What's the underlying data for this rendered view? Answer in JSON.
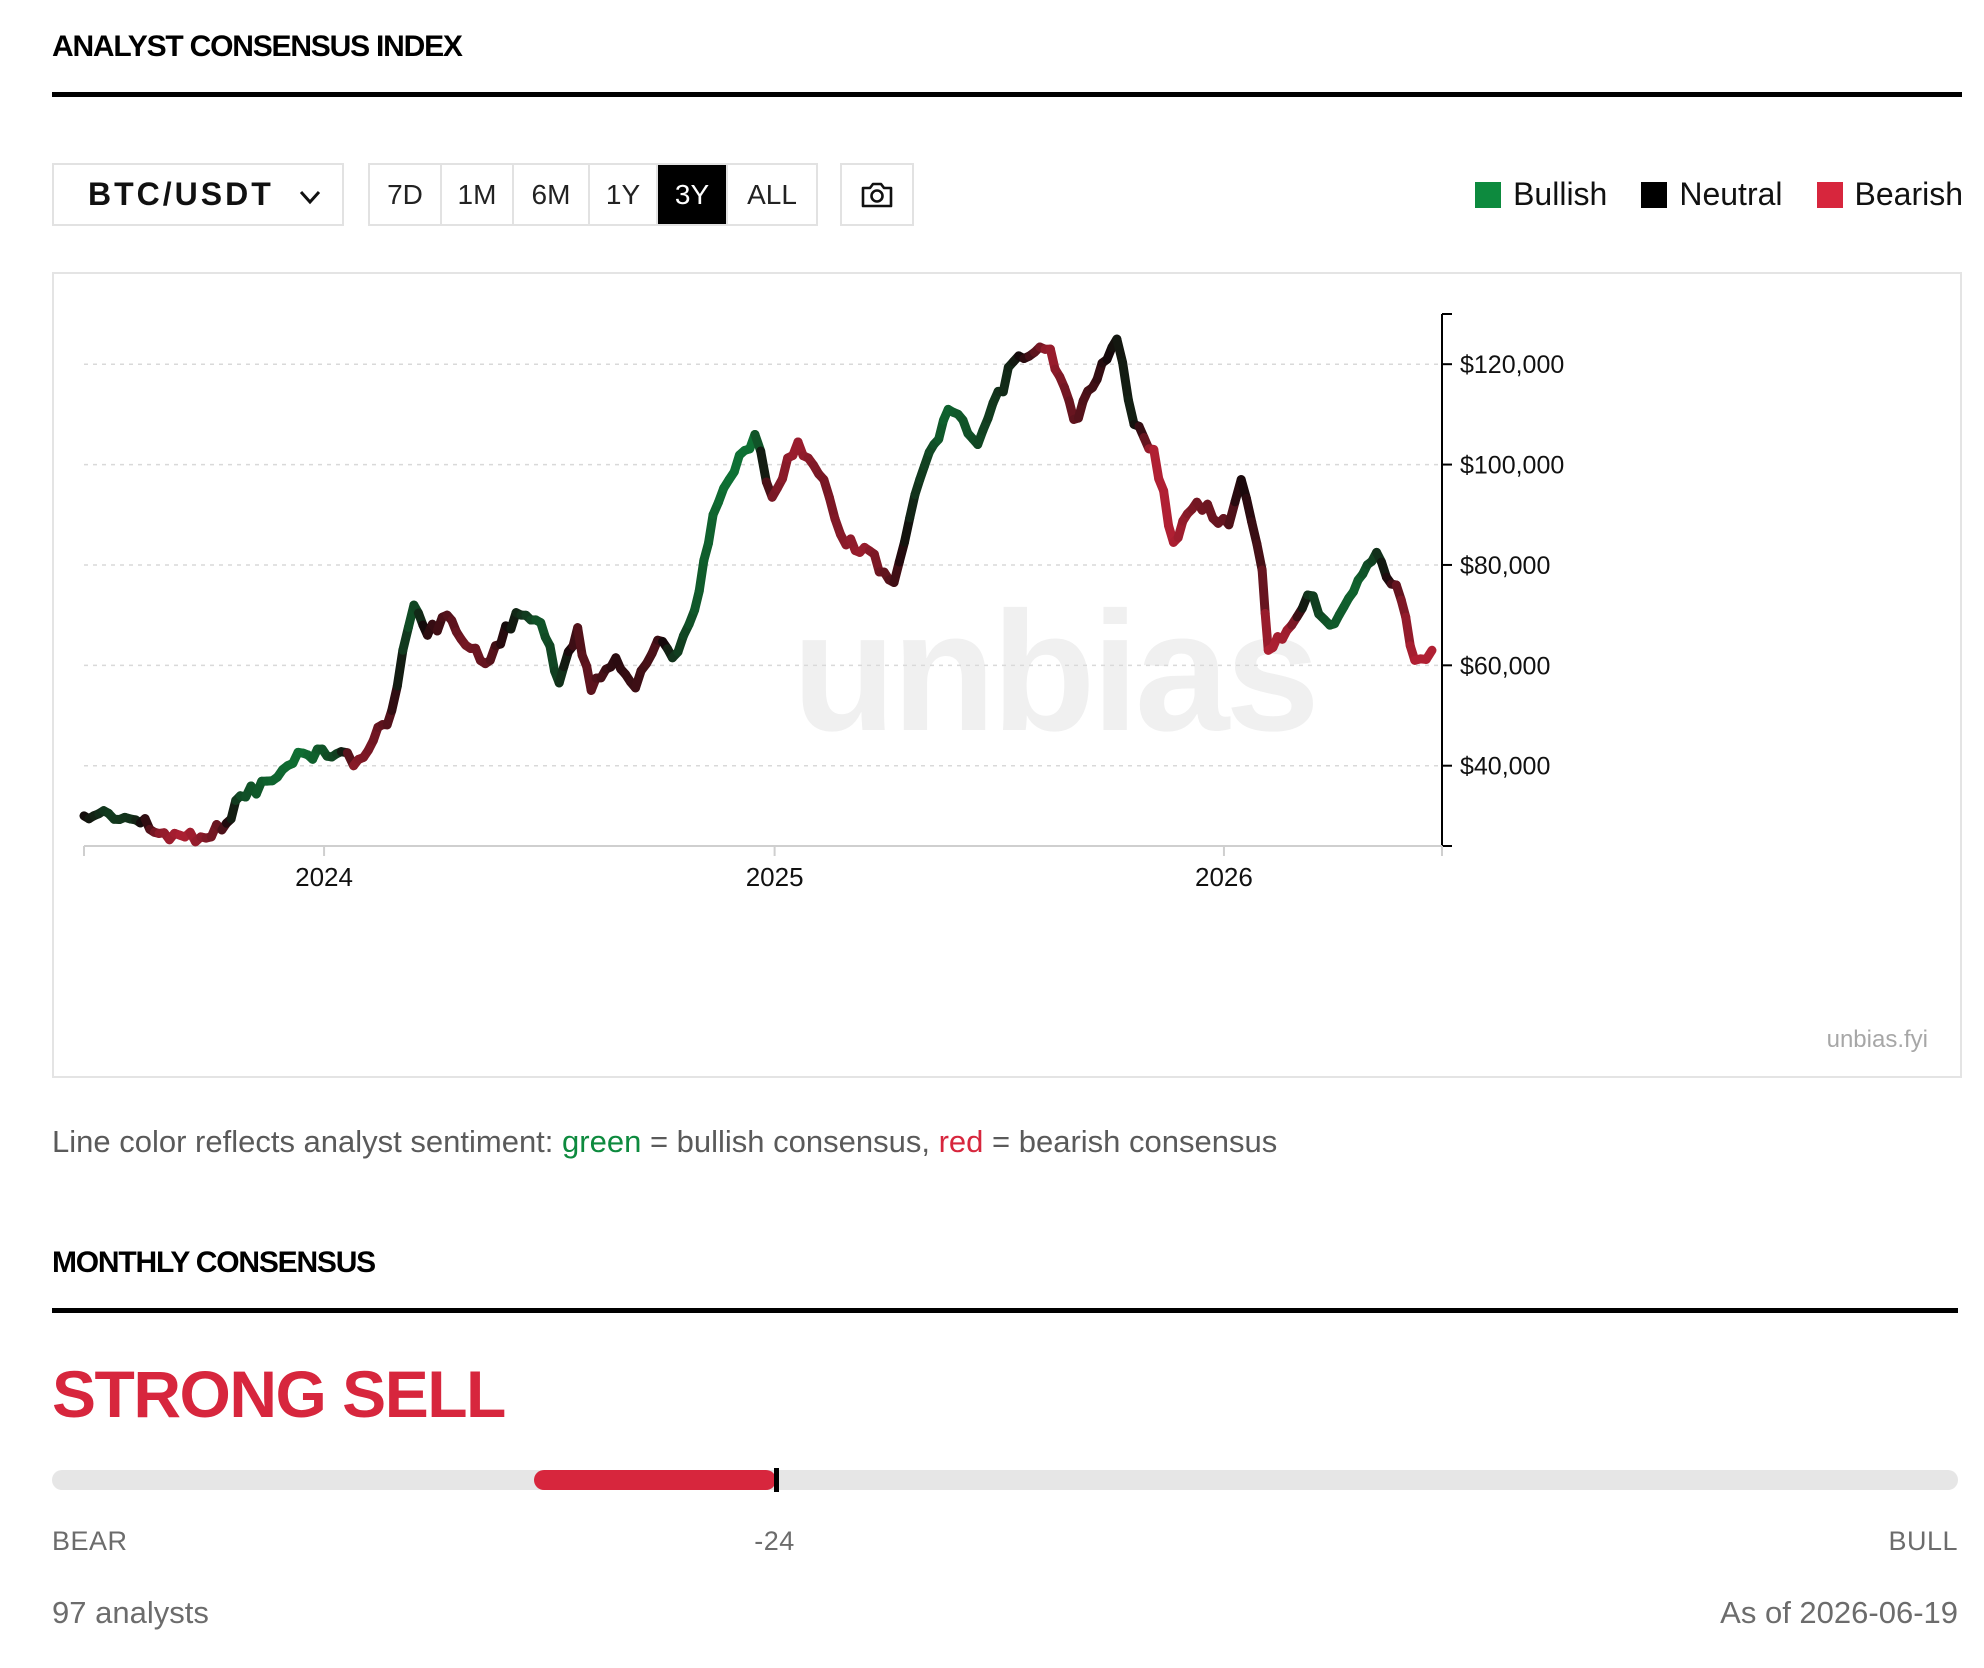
{
  "header": {
    "title": "ANALYST CONSENSUS INDEX"
  },
  "toolbar": {
    "pair": "BTC/USDT",
    "ranges": [
      "7D",
      "1M",
      "6M",
      "1Y",
      "3Y",
      "ALL"
    ],
    "active_range": "3Y",
    "snapshot_icon": "camera-icon",
    "dropdown_icon": "chevron-down-icon"
  },
  "legend": [
    {
      "label": "Bullish",
      "color": "#0d8a3e"
    },
    {
      "label": "Neutral",
      "color": "#000000"
    },
    {
      "label": "Bearish",
      "color": "#d7263d"
    }
  ],
  "chart_data": {
    "type": "line",
    "x_axis": {
      "ticks": [
        "2024",
        "2025",
        "2026"
      ],
      "range": [
        "2023-06-20",
        "2026-06-19"
      ]
    },
    "y_axis": {
      "ticks": [
        120000,
        100000,
        80000,
        60000,
        40000
      ],
      "tick_labels": [
        "$120,000",
        "$100,000",
        "$80,000",
        "$60,000",
        "$40,000"
      ],
      "ylim": [
        24000,
        130000
      ],
      "position": "right"
    },
    "grid": true,
    "legend_position": "top-right",
    "color_encoding": "sentiment (1 = bullish, 0 = neutral, -1 = bearish)",
    "points": [
      [
        "2023-06-20",
        30000,
        0
      ],
      [
        "2023-07-10",
        30500,
        0.4
      ],
      [
        "2023-08-01",
        29200,
        0.3
      ],
      [
        "2023-08-20",
        26500,
        -0.6
      ],
      [
        "2023-09-10",
        25800,
        -0.8
      ],
      [
        "2023-10-10",
        27200,
        -0.4
      ],
      [
        "2023-10-25",
        34000,
        0.5
      ],
      [
        "2023-11-20",
        37000,
        0.7
      ],
      [
        "2023-12-15",
        42500,
        0.8
      ],
      [
        "2024-01-15",
        42800,
        0.4
      ],
      [
        "2024-01-25",
        40000,
        -0.6
      ],
      [
        "2024-02-10",
        45000,
        -0.5
      ],
      [
        "2024-02-25",
        51000,
        -0.3
      ],
      [
        "2024-03-05",
        63000,
        0.3
      ],
      [
        "2024-03-14",
        72000,
        0.6
      ],
      [
        "2024-03-25",
        66000,
        -0.1
      ],
      [
        "2024-04-10",
        70000,
        -0.3
      ],
      [
        "2024-04-25",
        64000,
        -0.5
      ],
      [
        "2024-05-15",
        61000,
        -0.4
      ],
      [
        "2024-06-05",
        70500,
        0.2
      ],
      [
        "2024-06-25",
        68500,
        0.6
      ],
      [
        "2024-07-10",
        56500,
        0.4
      ],
      [
        "2024-07-25",
        67500,
        -0.3
      ],
      [
        "2024-08-05",
        55000,
        -0.4
      ],
      [
        "2024-08-25",
        61500,
        -0.1
      ],
      [
        "2024-09-10",
        55500,
        -0.2
      ],
      [
        "2024-09-28",
        65000,
        -0.3
      ],
      [
        "2024-10-10",
        61500,
        0.3
      ],
      [
        "2024-10-28",
        71000,
        0.6
      ],
      [
        "2024-11-12",
        90000,
        0.7
      ],
      [
        "2024-11-25",
        97000,
        0.8
      ],
      [
        "2024-12-16",
        106000,
        0.8
      ],
      [
        "2024-12-30",
        93500,
        -0.5
      ],
      [
        "2025-01-20",
        104500,
        -0.7
      ],
      [
        "2025-02-10",
        97000,
        -0.5
      ],
      [
        "2025-02-28",
        84000,
        -0.6
      ],
      [
        "2025-03-15",
        83500,
        -0.7
      ],
      [
        "2025-04-08",
        76500,
        -0.3
      ],
      [
        "2025-04-25",
        94000,
        0.3
      ],
      [
        "2025-05-22",
        111000,
        0.7
      ],
      [
        "2025-06-15",
        104000,
        0.5
      ],
      [
        "2025-07-14",
        120500,
        0.2
      ],
      [
        "2025-08-13",
        123000,
        -0.7
      ],
      [
        "2025-09-01",
        109000,
        -0.4
      ],
      [
        "2025-09-20",
        117000,
        -0.2
      ],
      [
        "2025-10-06",
        125000,
        0.1
      ],
      [
        "2025-10-20",
        108000,
        0.2
      ],
      [
        "2025-11-05",
        103000,
        -0.8
      ],
      [
        "2025-11-21",
        84500,
        -0.8
      ],
      [
        "2025-12-10",
        92500,
        -0.5
      ],
      [
        "2026-01-05",
        88000,
        -0.4
      ],
      [
        "2026-01-15",
        97000,
        0.0
      ],
      [
        "2026-02-01",
        79000,
        -0.3
      ],
      [
        "2026-02-06",
        63000,
        -0.8
      ],
      [
        "2026-02-25",
        68000,
        -0.7
      ],
      [
        "2026-03-10",
        74000,
        0.3
      ],
      [
        "2026-03-28",
        68000,
        0.6
      ],
      [
        "2026-04-20",
        77000,
        0.7
      ],
      [
        "2026-05-05",
        82500,
        0.4
      ],
      [
        "2026-05-25",
        73000,
        -0.5
      ],
      [
        "2026-06-05",
        61000,
        -0.8
      ],
      [
        "2026-06-19",
        63000,
        -0.8
      ]
    ]
  },
  "watermark": "unbias",
  "source": "unbias.fyi",
  "caption": {
    "prefix": "Line color reflects analyst sentiment: ",
    "green": "green",
    "mid": " = bullish consensus, ",
    "red": "red",
    "suffix": " = bearish consensus"
  },
  "monthly": {
    "title": "MONTHLY CONSENSUS",
    "rating": "STRONG SELL",
    "score": -24,
    "score_label": "-24",
    "scale": {
      "min": -100,
      "max": 100,
      "min_label": "BEAR",
      "max_label": "BULL"
    },
    "analysts": "97 analysts",
    "as_of": "As of 2026-06-19"
  }
}
